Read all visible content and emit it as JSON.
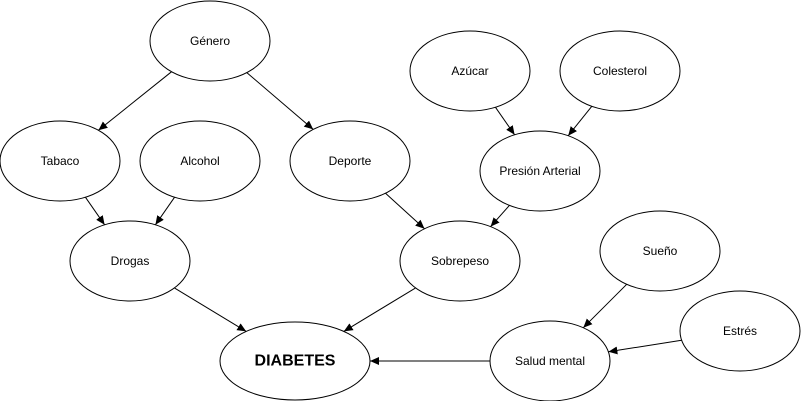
{
  "diagram": {
    "nodes": {
      "genero": "Género",
      "azucar": "Azúcar",
      "colesterol": "Colesterol",
      "tabaco": "Tabaco",
      "alcohol": "Alcohol",
      "deporte": "Deporte",
      "presion": "Presión Arterial",
      "drogas": "Drogas",
      "sobrepeso": "Sobrepeso",
      "sueno": "Sueño",
      "estres": "Estrés",
      "diabetes": "DIABETES",
      "salud": "Salud mental"
    },
    "edges": [
      [
        "genero",
        "tabaco"
      ],
      [
        "genero",
        "deporte"
      ],
      [
        "azucar",
        "presion"
      ],
      [
        "colesterol",
        "presion"
      ],
      [
        "tabaco",
        "drogas"
      ],
      [
        "alcohol",
        "drogas"
      ],
      [
        "deporte",
        "sobrepeso"
      ],
      [
        "presion",
        "sobrepeso"
      ],
      [
        "drogas",
        "diabetes"
      ],
      [
        "sobrepeso",
        "diabetes"
      ],
      [
        "sueno",
        "salud"
      ],
      [
        "estres",
        "salud"
      ],
      [
        "salud",
        "diabetes"
      ]
    ],
    "colors": {
      "stroke": "#000000",
      "fill": "#ffffff"
    }
  }
}
